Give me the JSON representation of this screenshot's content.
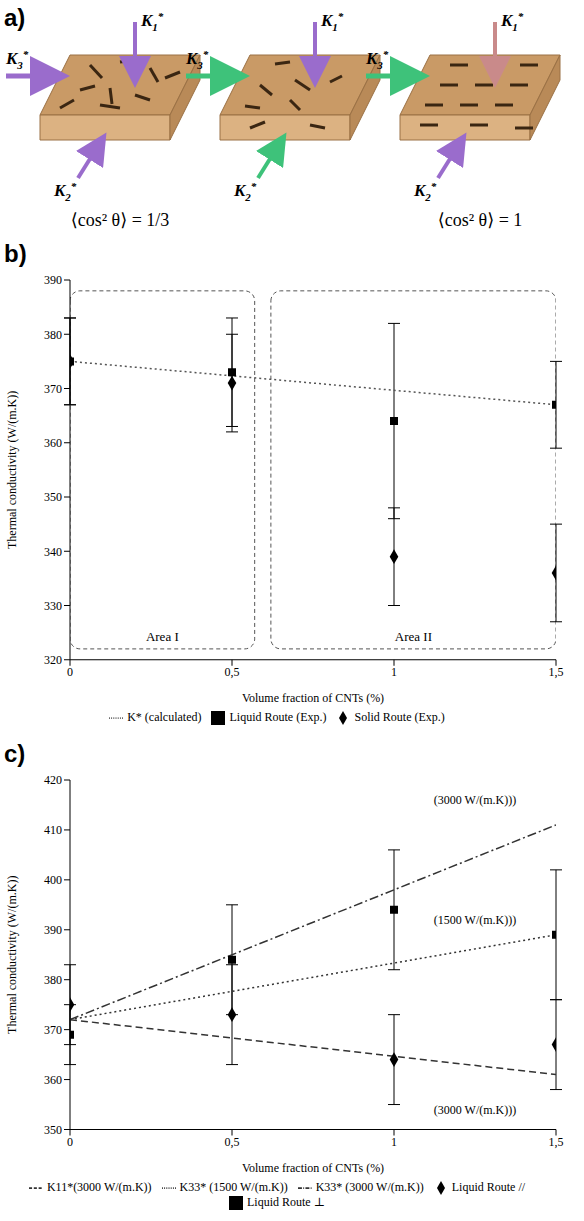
{
  "diagram": {
    "label": "a)",
    "boxes": [
      {
        "arrows": [
          "K1*",
          "K2*",
          "K3*"
        ],
        "formula": "⟨cos² θ⟩ = 1/3"
      },
      {
        "arrows": [
          "K1*",
          "K2*",
          "K3*"
        ]
      },
      {
        "arrows": [
          "K1*",
          "K2*",
          "K3*"
        ],
        "formula": "⟨cos² θ⟩ = 1"
      }
    ]
  },
  "chart_data": [
    {
      "type": "scatter",
      "panel_label": "b)",
      "xlabel": "Volume fraction of CNTs (%)",
      "ylabel": "Thermal conductivity (W/(m.K))",
      "xlim": [
        0,
        1.5
      ],
      "xticks": [
        0,
        {
          "value": 0.5,
          "label": "0,5"
        },
        1,
        {
          "value": 1.5,
          "label": "1,5"
        }
      ],
      "ylim": [
        320,
        390
      ],
      "yticks": [
        320,
        330,
        340,
        350,
        360,
        370,
        380,
        390
      ],
      "legend": "bottom",
      "series": [
        {
          "name": "Solid Route (Exp.)",
          "type": "scatter",
          "marker": "diamond",
          "color": "#000000",
          "x": [
            0,
            0.5,
            1,
            1.5
          ],
          "values": [
            375,
            371,
            339,
            336
          ],
          "errors": [
            8,
            9,
            9,
            9
          ]
        },
        {
          "name": "Liquid Route (Exp.)",
          "type": "scatter",
          "marker": "square",
          "color": "#000000",
          "x": [
            0,
            0.5,
            1,
            1.5
          ],
          "values": [
            375,
            373,
            364,
            367
          ],
          "errors": [
            8,
            10,
            18,
            8
          ]
        },
        {
          "name": "K* (calculated)",
          "type": "line",
          "line_style": "dotted",
          "color": "#555555",
          "x": [
            0,
            1.5
          ],
          "values": [
            375,
            367
          ]
        }
      ],
      "annotations": [
        {
          "text": "Area I",
          "x": [
            0,
            0.57
          ],
          "y": [
            322,
            388
          ]
        },
        {
          "text": "Area II",
          "x": [
            0.62,
            1.5
          ],
          "y": [
            322,
            388
          ]
        }
      ]
    },
    {
      "type": "scatter",
      "panel_label": "c)",
      "xlabel": "Volume fraction of CNTs (%)",
      "ylabel": "Thermal conductivity (W/(m.K))",
      "xlim": [
        0,
        1.5
      ],
      "xticks": [
        0,
        {
          "value": 0.5,
          "label": "0,5"
        },
        1,
        {
          "value": 1.5,
          "label": "1,5"
        }
      ],
      "ylim": [
        350,
        420
      ],
      "yticks": [
        350,
        360,
        370,
        380,
        390,
        400,
        410,
        420
      ],
      "legend": "bottom",
      "series": [
        {
          "name": "Liquid Route //",
          "type": "scatter",
          "marker": "diamond",
          "color": "#000000",
          "x": [
            0,
            0.5,
            1,
            1.5
          ],
          "values": [
            375,
            373,
            364,
            367
          ],
          "errors": [
            8,
            10,
            9,
            9
          ]
        },
        {
          "name": "Liquid Route ⊥",
          "type": "scatter",
          "marker": "square",
          "color": "#000000",
          "x": [
            0,
            0.5,
            1,
            1.5
          ],
          "values": [
            369,
            384,
            394,
            389
          ],
          "errors": [
            6,
            11,
            12,
            13
          ]
        },
        {
          "name": "K11*(3000 W/(m.K))",
          "type": "line",
          "line_style": "dashed",
          "color": "#333333",
          "x": [
            0,
            1.5
          ],
          "values": [
            372,
            361
          ]
        },
        {
          "name": "K33* (3000 W/(m.K))",
          "type": "line",
          "line_style": "dashdot",
          "color": "#333333",
          "x": [
            0,
            1.5
          ],
          "values": [
            372,
            411
          ]
        },
        {
          "name": "K33* (1500 W/(m.K))",
          "type": "line",
          "line_style": "dotted",
          "color": "#333333",
          "x": [
            0,
            1.5
          ],
          "values": [
            372,
            389
          ]
        }
      ],
      "annotations": [
        {
          "text": "(3000 W/(m.K)))",
          "x": 1.25,
          "y": 416
        },
        {
          "text": "(1500 W/(m.K)))",
          "x": 1.25,
          "y": 392
        },
        {
          "text": "(3000 W/(m.K)))",
          "x": 1.25,
          "y": 354
        }
      ]
    }
  ]
}
